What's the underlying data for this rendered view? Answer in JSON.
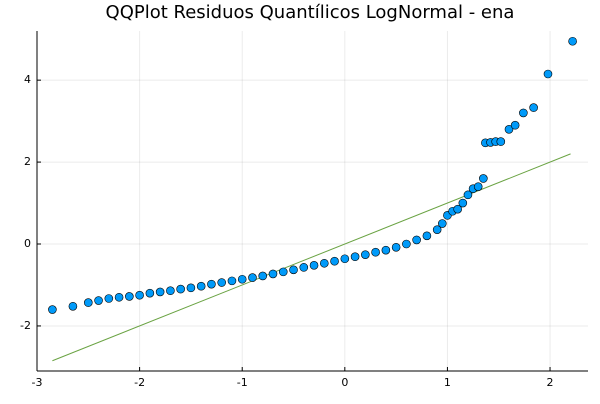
{
  "chart_data": {
    "type": "scatter",
    "title": "QQPlot Residuos Quantílicos LogNormal - ena",
    "x": [
      -2.85,
      -2.65,
      -2.5,
      -2.4,
      -2.3,
      -2.2,
      -2.1,
      -2.0,
      -1.9,
      -1.8,
      -1.7,
      -1.6,
      -1.5,
      -1.4,
      -1.3,
      -1.2,
      -1.1,
      -1.0,
      -0.9,
      -0.8,
      -0.7,
      -0.6,
      -0.5,
      -0.4,
      -0.3,
      -0.2,
      -0.1,
      0,
      0.1,
      0.2,
      0.3,
      0.4,
      0.5,
      0.6,
      0.7,
      0.8,
      0.9,
      0.95,
      1.0,
      1.05,
      1.1,
      1.15,
      1.2,
      1.25,
      1.3,
      1.35,
      1.37,
      1.42,
      1.47,
      1.52,
      1.6,
      1.66,
      1.74,
      1.84,
      1.98,
      2.22
    ],
    "y": [
      -1.6,
      -1.52,
      -1.43,
      -1.38,
      -1.33,
      -1.3,
      -1.28,
      -1.25,
      -1.2,
      -1.17,
      -1.14,
      -1.1,
      -1.07,
      -1.03,
      -0.98,
      -0.94,
      -0.9,
      -0.86,
      -0.82,
      -0.78,
      -0.73,
      -0.68,
      -0.63,
      -0.57,
      -0.52,
      -0.47,
      -0.42,
      -0.36,
      -0.31,
      -0.26,
      -0.2,
      -0.15,
      -0.08,
      0.0,
      0.1,
      0.2,
      0.35,
      0.5,
      0.7,
      0.8,
      0.85,
      1.0,
      1.2,
      1.35,
      1.4,
      1.6,
      2.47,
      2.48,
      2.5,
      2.5,
      2.8,
      2.9,
      3.2,
      3.33,
      4.15,
      4.95
    ],
    "color": "#009af9",
    "reference_line": {
      "x": [
        -2.85,
        2.2
      ],
      "y": [
        -2.85,
        2.2
      ],
      "color": "#6aa343"
    },
    "xlim": [
      -3,
      2.37
    ],
    "ylim": [
      -3.1,
      5.2
    ],
    "xticks": [
      -3,
      -2,
      -1,
      0,
      1,
      2
    ],
    "yticks": [
      -2,
      0,
      2,
      4
    ],
    "grid": true
  }
}
